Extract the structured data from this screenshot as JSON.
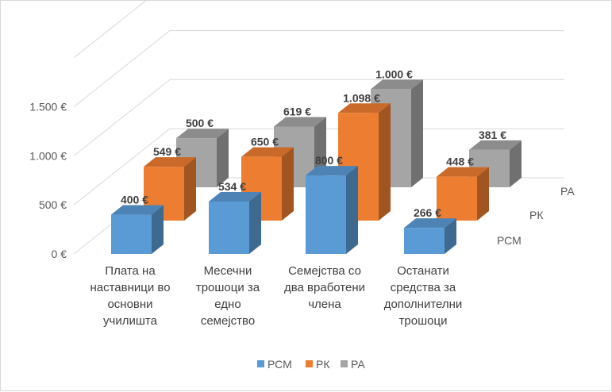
{
  "chart_data": {
    "type": "bar",
    "variant": "3d-clustered-depth",
    "categories": [
      [
        "Плата на",
        "наставници во",
        "основни",
        "училишта"
      ],
      [
        "Месечни",
        "трошоци за",
        "едно",
        "семејство"
      ],
      [
        "Семејства со",
        "два вработени",
        "члена"
      ],
      [
        "Останати",
        "средства за",
        "дополнителни",
        "трошоци"
      ]
    ],
    "series": [
      {
        "name": "РСМ",
        "values": [
          400,
          534,
          800,
          266
        ],
        "labels": [
          "400 €",
          "534 €",
          "800 €",
          "266 €"
        ],
        "color": "#5b9bd5"
      },
      {
        "name": "РК",
        "values": [
          549,
          650,
          1098,
          448
        ],
        "labels": [
          "549 €",
          "650 €",
          "1.098 €",
          "448 €"
        ],
        "color": "#ed7d31"
      },
      {
        "name": "РА",
        "values": [
          500,
          619,
          1000,
          381
        ],
        "labels": [
          "500 €",
          "619 €",
          "1.000 €",
          "381 €"
        ],
        "color": "#a5a5a5"
      }
    ],
    "y_ticks": [
      {
        "value": 0,
        "label": "0 €"
      },
      {
        "value": 500,
        "label": "500 €"
      },
      {
        "value": 1000,
        "label": "1.000 €"
      },
      {
        "value": 1500,
        "label": "1.500 €"
      }
    ],
    "depth_axis_labels": [
      "РА",
      "РК",
      "РСМ"
    ],
    "ylim": [
      0,
      2000
    ],
    "grid": true,
    "legend_position": "bottom"
  }
}
